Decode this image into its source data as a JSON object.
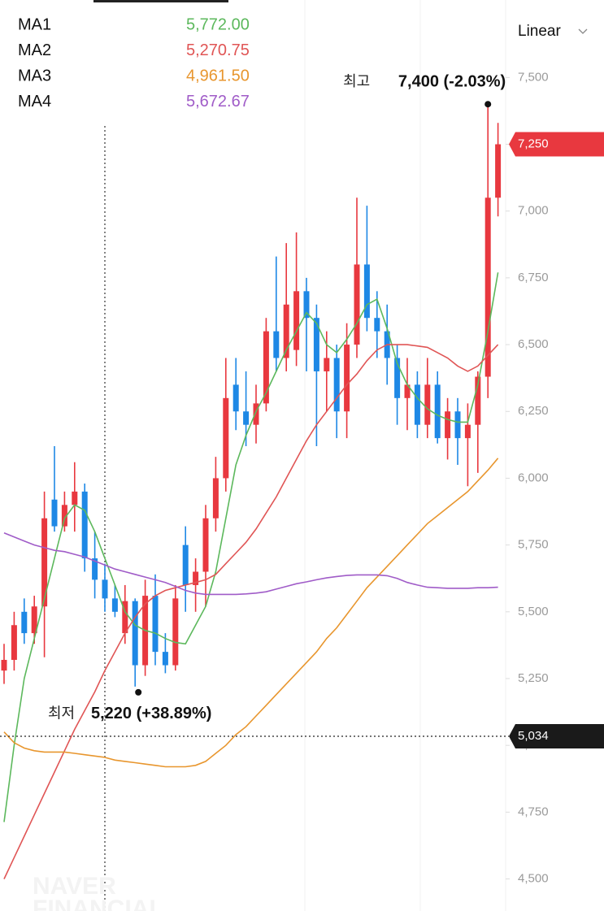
{
  "chart_data": {
    "type": "candlestick",
    "scale_toggle": "Linear",
    "up_color": "#e8383f",
    "down_color": "#1e88e5",
    "ylim": [
      4380,
      7790
    ],
    "yticks": [
      {
        "value": 4500,
        "label": "4,500"
      },
      {
        "value": 4750,
        "label": "4,750"
      },
      {
        "value": 5000,
        "label": "5,000"
      },
      {
        "value": 5250,
        "label": "5,250"
      },
      {
        "value": 5500,
        "label": "5,500"
      },
      {
        "value": 5750,
        "label": "5,750"
      },
      {
        "value": 6000,
        "label": "6,000"
      },
      {
        "value": 6250,
        "label": "6,250"
      },
      {
        "value": 6500,
        "label": "6,500"
      },
      {
        "value": 6750,
        "label": "6,750"
      },
      {
        "value": 7000,
        "label": "7,000"
      },
      {
        "value": 7250,
        "label": "7,250"
      },
      {
        "value": 7500,
        "label": "7,500"
      }
    ],
    "candles": [
      [
        5280,
        5380,
        5230,
        5320
      ],
      [
        5320,
        5500,
        5280,
        5450
      ],
      [
        5500,
        5550,
        5380,
        5420
      ],
      [
        5420,
        5560,
        5380,
        5520
      ],
      [
        5520,
        5950,
        5330,
        5850
      ],
      [
        5920,
        6120,
        5800,
        5820
      ],
      [
        5820,
        5950,
        5800,
        5900
      ],
      [
        5900,
        6060,
        5800,
        5950
      ],
      [
        5950,
        5980,
        5650,
        5700
      ],
      [
        5700,
        5800,
        5550,
        5620
      ],
      [
        5620,
        5680,
        5500,
        5550
      ],
      [
        5550,
        5600,
        5480,
        5500
      ],
      [
        5420,
        5600,
        5380,
        5540
      ],
      [
        5540,
        5550,
        5220,
        5300
      ],
      [
        5300,
        5620,
        5260,
        5560
      ],
      [
        5560,
        5640,
        5300,
        5350
      ],
      [
        5350,
        5420,
        5270,
        5300
      ],
      [
        5300,
        5600,
        5280,
        5550
      ],
      [
        5750,
        5820,
        5500,
        5600
      ],
      [
        5600,
        5700,
        5500,
        5650
      ],
      [
        5650,
        5900,
        5520,
        5850
      ],
      [
        5850,
        6080,
        5800,
        6000
      ],
      [
        6000,
        6450,
        5950,
        6300
      ],
      [
        6350,
        6450,
        6180,
        6250
      ],
      [
        6250,
        6400,
        6120,
        6200
      ],
      [
        6200,
        6350,
        6130,
        6280
      ],
      [
        6280,
        6600,
        6250,
        6550
      ],
      [
        6550,
        6830,
        6400,
        6450
      ],
      [
        6450,
        6880,
        6400,
        6650
      ],
      [
        6480,
        6920,
        6420,
        6700
      ],
      [
        6700,
        6750,
        6400,
        6600
      ],
      [
        6600,
        6650,
        6120,
        6400
      ],
      [
        6400,
        6550,
        6250,
        6450
      ],
      [
        6450,
        6500,
        6150,
        6250
      ],
      [
        6250,
        6580,
        6150,
        6500
      ],
      [
        6500,
        7050,
        6450,
        6800
      ],
      [
        6800,
        7020,
        6550,
        6600
      ],
      [
        6600,
        6700,
        6450,
        6550
      ],
      [
        6550,
        6650,
        6350,
        6450
      ],
      [
        6450,
        6500,
        6200,
        6300
      ],
      [
        6300,
        6450,
        6180,
        6350
      ],
      [
        6350,
        6400,
        6150,
        6200
      ],
      [
        6200,
        6450,
        6150,
        6350
      ],
      [
        6350,
        6400,
        6130,
        6150
      ],
      [
        6150,
        6300,
        6070,
        6250
      ],
      [
        6250,
        6300,
        6050,
        6150
      ],
      [
        6150,
        6280,
        5970,
        6200
      ],
      [
        6200,
        6400,
        6020,
        6380
      ],
      [
        6380,
        7400,
        6300,
        7050
      ],
      [
        7050,
        7330,
        6980,
        7250
      ]
    ],
    "series": [
      {
        "name": "MA1",
        "color": "#5cb85c",
        "legend_value": {
          "value": 5772,
          "label": "5,772.00"
        },
        "values": [
          4713,
          5000,
          5250,
          5400,
          5550,
          5700,
          5850,
          5900,
          5880,
          5800,
          5700,
          5600,
          5500,
          5450,
          5430,
          5420,
          5400,
          5385,
          5380,
          5450,
          5520,
          5650,
          5850,
          6050,
          6160,
          6250,
          6320,
          6400,
          6480,
          6550,
          6620,
          6580,
          6500,
          6470,
          6520,
          6580,
          6650,
          6670,
          6560,
          6430,
          6350,
          6300,
          6260,
          6236,
          6220,
          6210,
          6210,
          6350,
          6550,
          6770
        ]
      },
      {
        "name": "MA2",
        "color": "#e05555",
        "legend_value": {
          "value": 5270.75,
          "label": "5,270.75"
        },
        "values": [
          4500,
          4580,
          4660,
          4740,
          4820,
          4900,
          4980,
          5060,
          5130,
          5200,
          5280,
          5350,
          5420,
          5480,
          5530,
          5560,
          5580,
          5590,
          5600,
          5610,
          5620,
          5640,
          5680,
          5720,
          5760,
          5810,
          5870,
          5930,
          6000,
          6070,
          6140,
          6200,
          6250,
          6300,
          6350,
          6390,
          6440,
          6480,
          6500,
          6500,
          6500,
          6495,
          6490,
          6470,
          6450,
          6420,
          6400,
          6420,
          6460,
          6500
        ]
      },
      {
        "name": "MA3",
        "color": "#e8962e",
        "legend_value": {
          "value": 4961.5,
          "label": "4,961.50"
        },
        "values": [
          5050,
          5010,
          4990,
          4980,
          4975,
          4975,
          4975,
          4970,
          4965,
          4960,
          4955,
          4945,
          4940,
          4935,
          4930,
          4925,
          4920,
          4920,
          4920,
          4925,
          4940,
          4970,
          5000,
          5040,
          5070,
          5110,
          5150,
          5190,
          5230,
          5270,
          5310,
          5350,
          5400,
          5440,
          5490,
          5540,
          5590,
          5630,
          5670,
          5710,
          5750,
          5790,
          5830,
          5860,
          5890,
          5920,
          5950,
          5990,
          6030,
          6075
        ]
      },
      {
        "name": "MA4",
        "color": "#a05cc8",
        "legend_value": {
          "value": 5672.67,
          "label": "5,672.67"
        },
        "values": [
          5795,
          5780,
          5765,
          5750,
          5740,
          5730,
          5725,
          5715,
          5705,
          5690,
          5675,
          5660,
          5650,
          5640,
          5630,
          5620,
          5610,
          5595,
          5580,
          5570,
          5565,
          5565,
          5565,
          5565,
          5567,
          5570,
          5575,
          5585,
          5595,
          5605,
          5612,
          5620,
          5627,
          5632,
          5636,
          5638,
          5638,
          5638,
          5635,
          5625,
          5610,
          5600,
          5592,
          5590,
          5588,
          5588,
          5588,
          5590,
          5590,
          5592
        ]
      }
    ],
    "high_annotation": {
      "prefix": "최고",
      "text": "7,400 (-2.03%)"
    },
    "low_annotation": {
      "prefix": "최저",
      "text": "5,220 (+38.89%)"
    },
    "price_tags": [
      {
        "value": 7250,
        "label": "7,250",
        "color": "#e8383f"
      },
      {
        "value": 5034,
        "label": "5,034",
        "color": "#1a1a1a"
      }
    ],
    "watermark": [
      "NAVER",
      "FINANCIAL"
    ]
  }
}
